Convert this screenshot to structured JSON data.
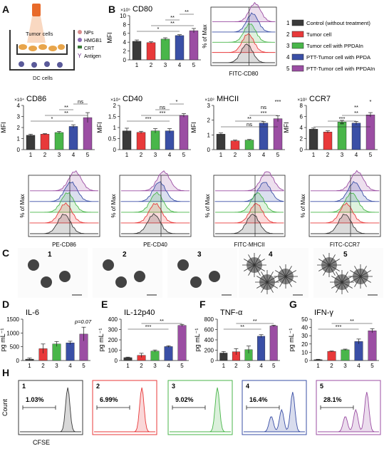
{
  "figure": {
    "panel_letters": [
      "A",
      "B",
      "C",
      "D",
      "E",
      "F",
      "G",
      "H"
    ],
    "colors": {
      "control": "#3a3a3a",
      "tumor": "#e8393a",
      "tumor_ppdain": "#49b64a",
      "ptt_ppda": "#3a4fa6",
      "ptt_ppdain": "#9b4ea3"
    },
    "legend": {
      "items": [
        {
          "num": "1",
          "label": "Control (without treatment)",
          "color": "#3a3a3a"
        },
        {
          "num": "2",
          "label": "Tumor cell",
          "color": "#e8393a"
        },
        {
          "num": "3",
          "label": "Tumor cell with PPDAIn",
          "color": "#49b64a"
        },
        {
          "num": "4",
          "label": "PTT-Tumor cell with PPDA",
          "color": "#3a4fa6"
        },
        {
          "num": "5",
          "label": "PTT-Tumor cell with PPDAIn",
          "color": "#9b4ea3"
        }
      ]
    },
    "schematic": {
      "tumor_label": "Tumor cells",
      "dc_label": "DC cells",
      "legend": [
        "NPs",
        "HMGB1",
        "CRT",
        "Antigen"
      ]
    },
    "panel_c_labels": [
      "1",
      "2",
      "3",
      "4",
      "5"
    ],
    "panel_h": {
      "ylabel": "Count",
      "xlabel": "CFSE",
      "panels": [
        {
          "num": "1",
          "pct": "1.03%",
          "color": "#3a3a3a"
        },
        {
          "num": "2",
          "pct": "6.99%",
          "color": "#e8393a"
        },
        {
          "num": "3",
          "pct": "9.02%",
          "color": "#49b64a"
        },
        {
          "num": "4",
          "pct": "16.4%",
          "color": "#3a4fa6"
        },
        {
          "num": "5",
          "pct": "28.1%",
          "color": "#9b4ea3"
        }
      ]
    }
  },
  "chart_data": [
    {
      "id": "cd80",
      "type": "bar",
      "title": "CD80",
      "ylabel": "MFI",
      "yexp": "×10⁵",
      "categories": [
        "1",
        "2",
        "3",
        "4",
        "5"
      ],
      "values": [
        4.2,
        3.9,
        4.7,
        5.5,
        6.6
      ],
      "errors": [
        0.3,
        0.2,
        0.3,
        0.2,
        0.5
      ],
      "ylim": [
        0,
        10
      ],
      "yticks": [
        0,
        2,
        4,
        6,
        8,
        10
      ],
      "sig": [
        "**",
        "**",
        "**",
        "*"
      ]
    },
    {
      "id": "cd86",
      "type": "bar",
      "title": "CD86",
      "ylabel": "MFI",
      "yexp": "×10⁴",
      "categories": [
        "1",
        "2",
        "3",
        "4",
        "5"
      ],
      "values": [
        1.3,
        1.4,
        1.55,
        2.1,
        2.9
      ],
      "errors": [
        0.1,
        0.05,
        0.1,
        0.15,
        0.45
      ],
      "ylim": [
        0,
        4
      ],
      "yticks": [
        0,
        1,
        2,
        3,
        4
      ],
      "sig": [
        "ns",
        "**",
        "**",
        "*"
      ]
    },
    {
      "id": "cd40",
      "type": "bar",
      "title": "CD40",
      "ylabel": "MFI",
      "yexp": "×10⁴",
      "categories": [
        "1",
        "2",
        "3",
        "4",
        "5"
      ],
      "values": [
        0.85,
        0.78,
        0.85,
        0.85,
        1.55
      ],
      "errors": [
        0.12,
        0.05,
        0.1,
        0.1,
        0.08
      ],
      "ylim": [
        0,
        2
      ],
      "yticks": [
        0,
        0.5,
        1.0,
        1.5,
        2.0
      ],
      "sig": [
        "*",
        "ns",
        "***",
        "***"
      ]
    },
    {
      "id": "mhcii",
      "type": "bar",
      "title": "MHCII",
      "ylabel": "MFI",
      "yexp": "×10³",
      "categories": [
        "1",
        "2",
        "3",
        "4",
        "5"
      ],
      "values": [
        1.05,
        0.6,
        0.65,
        1.8,
        2.1
      ],
      "errors": [
        0.08,
        0.05,
        0.04,
        0.1,
        0.2
      ],
      "ylim": [
        0,
        3
      ],
      "yticks": [
        0,
        1,
        2,
        3
      ],
      "sig": [
        "***",
        "ns",
        "***",
        "**",
        "ns"
      ]
    },
    {
      "id": "ccr7",
      "type": "bar",
      "title": "CCR7",
      "ylabel": "MFI",
      "yexp": "×10³",
      "categories": [
        "1",
        "2",
        "3",
        "4",
        "5"
      ],
      "values": [
        3.7,
        3.2,
        5.0,
        4.8,
        6.3
      ],
      "errors": [
        0.2,
        0.2,
        0.3,
        0.3,
        0.4
      ],
      "ylim": [
        0,
        8
      ],
      "yticks": [
        0,
        2,
        4,
        6,
        8
      ],
      "sig": [
        "*",
        "**",
        "**",
        "***",
        "**"
      ]
    },
    {
      "id": "il6",
      "type": "bar",
      "title": "IL-6",
      "ylabel": "pg mL⁻¹",
      "categories": [
        "1",
        "2",
        "3",
        "4",
        "5"
      ],
      "values": [
        50,
        430,
        600,
        640,
        960
      ],
      "errors": [
        40,
        170,
        90,
        60,
        250
      ],
      "ylim": [
        0,
        1500
      ],
      "yticks": [
        0,
        500,
        1000,
        1500
      ],
      "annotation": "p=0.07"
    },
    {
      "id": "il12",
      "type": "bar",
      "title": "IL-12p40",
      "ylabel": "pg mL⁻¹",
      "categories": [
        "1",
        "2",
        "3",
        "4",
        "5"
      ],
      "values": [
        28,
        50,
        92,
        135,
        340
      ],
      "errors": [
        5,
        20,
        10,
        8,
        10
      ],
      "ylim": [
        0,
        400
      ],
      "yticks": [
        0,
        100,
        200,
        300,
        400
      ],
      "sig": [
        "**",
        "***"
      ]
    },
    {
      "id": "tnf",
      "type": "bar",
      "title": "TNF-α",
      "ylabel": "pg mL⁻¹",
      "categories": [
        "1",
        "2",
        "3",
        "4",
        "5"
      ],
      "values": [
        145,
        170,
        210,
        470,
        670
      ],
      "errors": [
        30,
        60,
        70,
        30,
        15
      ],
      "ylim": [
        0,
        800
      ],
      "yticks": [
        0,
        200,
        400,
        600,
        800
      ],
      "sig": [
        "**",
        "**"
      ]
    },
    {
      "id": "ifn",
      "type": "bar",
      "title": "IFN-γ",
      "ylabel": "pg mL⁻¹",
      "categories": [
        "1",
        "2",
        "3",
        "4",
        "5"
      ],
      "values": [
        1,
        11,
        13,
        23,
        36
      ],
      "errors": [
        0.5,
        0.5,
        0.8,
        3,
        2.5
      ],
      "ylim": [
        0,
        50
      ],
      "yticks": [
        0,
        10,
        20,
        30,
        40,
        50
      ],
      "sig": [
        "**",
        "***"
      ]
    }
  ]
}
